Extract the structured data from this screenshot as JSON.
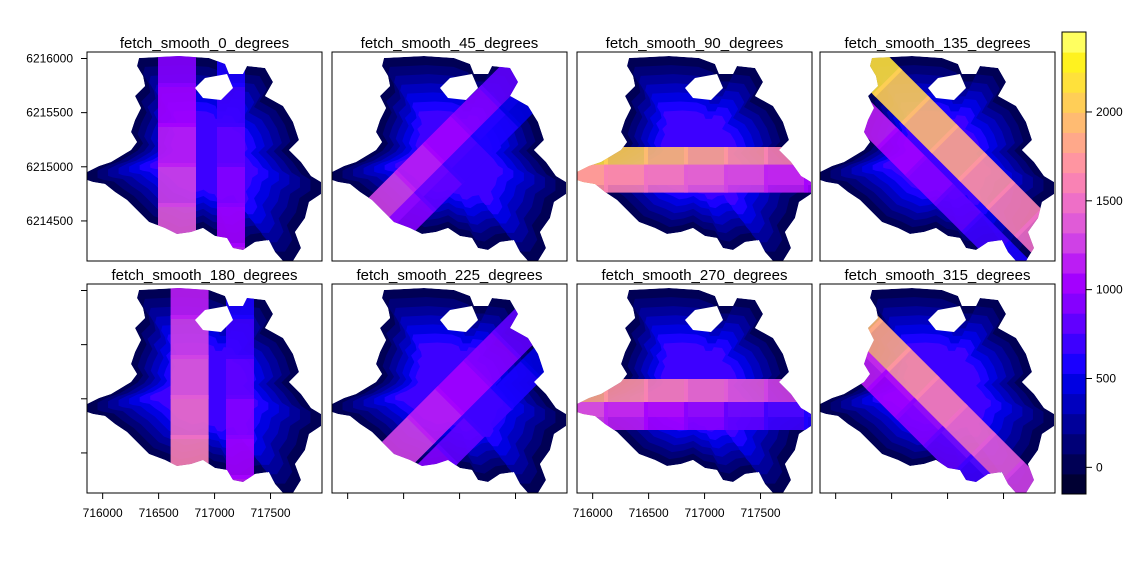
{
  "chart_data": {
    "type": "heatmap",
    "layout": {
      "rows": 2,
      "cols": 4
    },
    "panels": [
      {
        "title": "fetch_smooth_0_degrees",
        "direction_deg": 0
      },
      {
        "title": "fetch_smooth_45_degrees",
        "direction_deg": 45
      },
      {
        "title": "fetch_smooth_90_degrees",
        "direction_deg": 90
      },
      {
        "title": "fetch_smooth_135_degrees",
        "direction_deg": 135
      },
      {
        "title": "fetch_smooth_180_degrees",
        "direction_deg": 180
      },
      {
        "title": "fetch_smooth_225_degrees",
        "direction_deg": 225
      },
      {
        "title": "fetch_smooth_270_degrees",
        "direction_deg": 270
      },
      {
        "title": "fetch_smooth_315_degrees",
        "direction_deg": 315
      }
    ],
    "x_ticks": [
      "716000",
      "716500",
      "717000",
      "717500"
    ],
    "x_tick_values": [
      716000,
      716500,
      717000,
      717500
    ],
    "y_ticks": [
      "6214500",
      "6215000",
      "6215500",
      "6216000"
    ],
    "y_tick_values": [
      6214500,
      6215000,
      6215500,
      6216000
    ],
    "xlim": [
      715860,
      717960
    ],
    "ylim": [
      6214130,
      6216060
    ],
    "colorbar": {
      "ticks": [
        "0",
        "500",
        "1000",
        "1500",
        "2000"
      ],
      "tick_values": [
        0,
        500,
        1000,
        1500,
        2000
      ],
      "range": [
        -150,
        2450
      ],
      "colors": [
        "#000033",
        "#000055",
        "#000077",
        "#00009A",
        "#0000BF",
        "#0000E2",
        "#1A00FF",
        "#3D00FF",
        "#6100FF",
        "#8500FF",
        "#A300FF",
        "#BB1DF4",
        "#CF41E6",
        "#E05BD7",
        "#EE6FC7",
        "#F982B4",
        "#FF95A1",
        "#FFA88A",
        "#FFBB72",
        "#FFCE57",
        "#FFE13B",
        "#FFF21F",
        "#FFFF60"
      ]
    }
  }
}
